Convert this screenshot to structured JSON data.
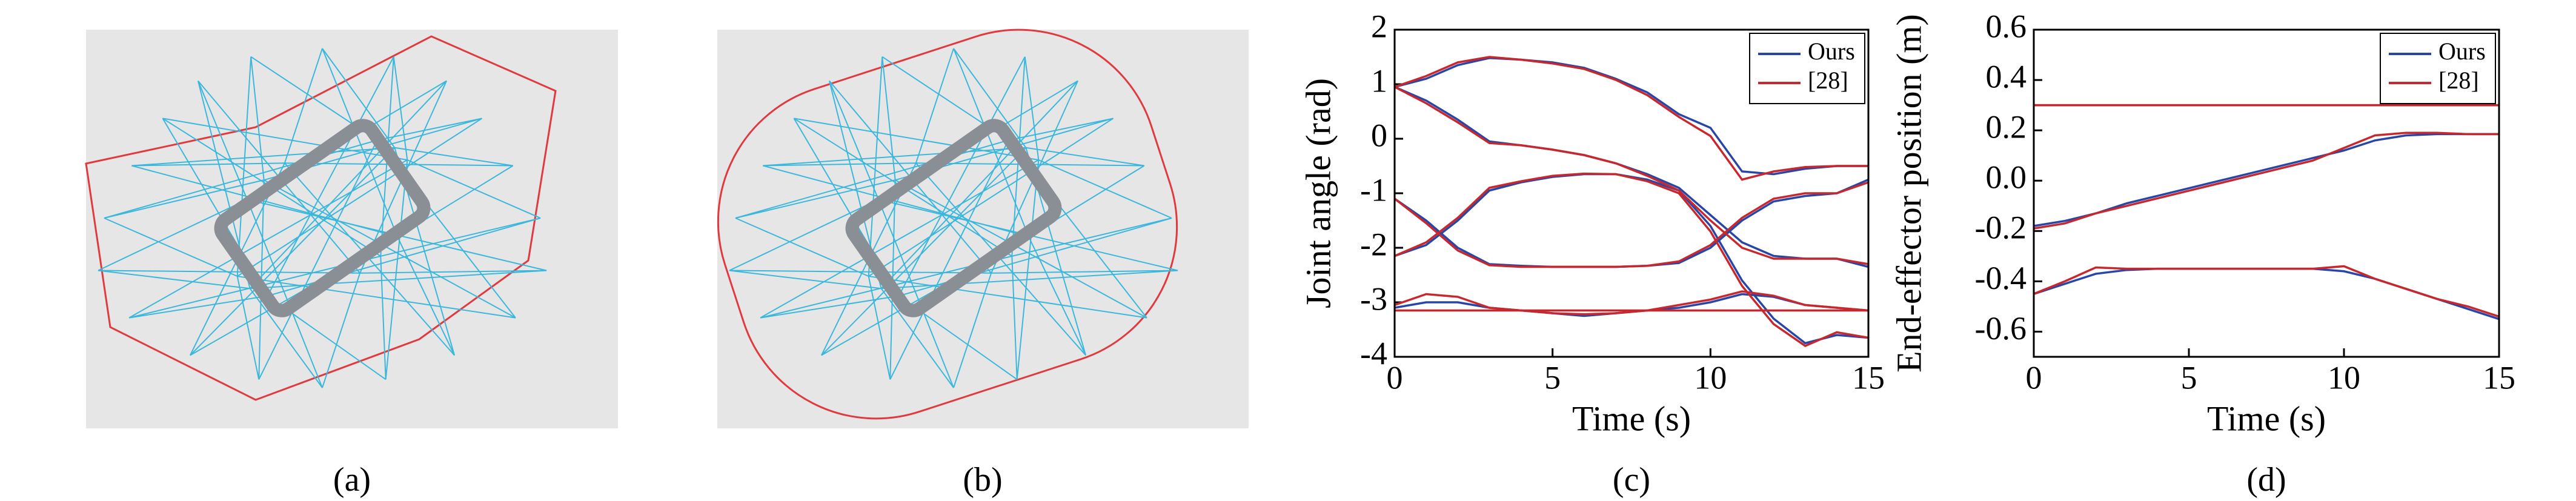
{
  "captions": [
    "(a)",
    "(b)",
    "(c)",
    "(d)"
  ],
  "chart_data": [
    {
      "type": "line",
      "xlabel": "Time (s)",
      "ylabel": "Joint angle (rad)",
      "x": [
        0,
        1,
        2,
        3,
        4,
        5,
        6,
        7,
        8,
        9,
        10,
        11,
        12,
        13,
        14,
        15
      ],
      "xlim": [
        0,
        15
      ],
      "xticks": [
        0,
        5,
        10,
        15
      ],
      "ylim": [
        -4,
        2
      ],
      "yticks": [
        -4,
        -3,
        -2,
        -1,
        0,
        1,
        2
      ],
      "legend": "upper right",
      "series": [
        {
          "name": "Ours",
          "color": "#2846a8",
          "values": [
            [
              0.95,
              1.1,
              1.35,
              1.48,
              1.45,
              1.4,
              1.3,
              1.1,
              0.85,
              0.45,
              0.2,
              -0.6,
              -0.65,
              -0.55,
              -0.5,
              -0.5
            ],
            [
              0.95,
              0.7,
              0.35,
              -0.05,
              -0.12,
              -0.2,
              -0.3,
              -0.45,
              -0.65,
              -0.9,
              -1.4,
              -1.9,
              -2.15,
              -2.2,
              -2.2,
              -2.35
            ],
            [
              -2.15,
              -1.95,
              -1.5,
              -0.95,
              -0.8,
              -0.7,
              -0.65,
              -0.65,
              -0.75,
              -0.95,
              -1.6,
              -2.6,
              -3.3,
              -3.75,
              -3.6,
              -3.65
            ],
            [
              -1.1,
              -1.5,
              -2.0,
              -2.3,
              -2.33,
              -2.35,
              -2.35,
              -2.35,
              -2.33,
              -2.28,
              -2.0,
              -1.5,
              -1.15,
              -1.05,
              -1.0,
              -0.75
            ],
            [
              -3.1,
              -3.0,
              -3.0,
              -3.1,
              -3.15,
              -3.2,
              -3.25,
              -3.2,
              -3.15,
              -3.1,
              -3.0,
              -2.85,
              -2.9,
              -3.05,
              -3.1,
              -3.15
            ]
          ]
        },
        {
          "name": "[28]",
          "color": "#c8282d",
          "values": [
            [
              0.95,
              1.15,
              1.4,
              1.5,
              1.45,
              1.38,
              1.28,
              1.08,
              0.8,
              0.4,
              0.05,
              -0.75,
              -0.6,
              -0.52,
              -0.5,
              -0.5
            ],
            [
              0.95,
              0.65,
              0.3,
              -0.08,
              -0.12,
              -0.2,
              -0.3,
              -0.45,
              -0.68,
              -0.95,
              -1.5,
              -2.0,
              -2.2,
              -2.2,
              -2.2,
              -2.3
            ],
            [
              -2.15,
              -1.9,
              -1.45,
              -0.9,
              -0.78,
              -0.68,
              -0.64,
              -0.65,
              -0.78,
              -1.0,
              -1.7,
              -2.7,
              -3.4,
              -3.8,
              -3.55,
              -3.65
            ],
            [
              -1.1,
              -1.55,
              -2.05,
              -2.32,
              -2.35,
              -2.35,
              -2.35,
              -2.35,
              -2.33,
              -2.25,
              -1.95,
              -1.45,
              -1.1,
              -1.0,
              -1.0,
              -0.8
            ],
            [
              -3.05,
              -2.85,
              -2.9,
              -3.1,
              -3.15,
              -3.2,
              -3.22,
              -3.2,
              -3.15,
              -3.05,
              -2.95,
              -2.8,
              -2.88,
              -3.05,
              -3.1,
              -3.15
            ],
            [
              -3.15,
              -3.15,
              -3.15,
              -3.15,
              -3.15,
              -3.15,
              -3.15,
              -3.15,
              -3.15,
              -3.15,
              -3.15,
              -3.15,
              -3.15,
              -3.15,
              -3.15,
              -3.15
            ]
          ]
        }
      ]
    },
    {
      "type": "line",
      "xlabel": "Time (s)",
      "ylabel": "End-effector position (m)",
      "x": [
        0,
        1,
        2,
        3,
        4,
        5,
        6,
        7,
        8,
        9,
        10,
        11,
        12,
        13,
        14,
        15
      ],
      "xlim": [
        0,
        15
      ],
      "xticks": [
        0,
        5,
        10,
        15
      ],
      "ylim": [
        -0.7,
        0.6
      ],
      "yticks": [
        -0.6,
        -0.4,
        -0.2,
        {
          "value": 0,
          "label": "0.0"
        },
        0.2,
        0.4,
        0.6
      ],
      "legend": "upper right",
      "series": [
        {
          "name": "Ours",
          "color": "#2846a8",
          "values": [
            [
              0.3,
              0.3,
              0.3,
              0.3,
              0.3,
              0.3,
              0.3,
              0.3,
              0.3,
              0.3,
              0.3,
              0.3,
              0.3,
              0.3,
              0.3,
              0.3
            ],
            [
              -0.18,
              -0.16,
              -0.13,
              -0.09,
              -0.06,
              -0.03,
              0.0,
              0.03,
              0.06,
              0.09,
              0.12,
              0.16,
              0.18,
              0.185,
              0.185,
              0.185
            ],
            [
              -0.45,
              -0.41,
              -0.37,
              -0.355,
              -0.35,
              -0.35,
              -0.35,
              -0.35,
              -0.35,
              -0.35,
              -0.36,
              -0.39,
              -0.43,
              -0.47,
              -0.51,
              -0.55
            ]
          ]
        },
        {
          "name": "[28]",
          "color": "#c8282d",
          "values": [
            [
              0.3,
              0.3,
              0.3,
              0.3,
              0.3,
              0.3,
              0.3,
              0.3,
              0.3,
              0.3,
              0.3,
              0.3,
              0.3,
              0.3,
              0.3,
              0.3
            ],
            [
              -0.19,
              -0.17,
              -0.13,
              -0.1,
              -0.07,
              -0.04,
              -0.01,
              0.02,
              0.05,
              0.08,
              0.13,
              0.18,
              0.19,
              0.19,
              0.185,
              0.185
            ],
            [
              -0.45,
              -0.4,
              -0.345,
              -0.35,
              -0.35,
              -0.35,
              -0.35,
              -0.35,
              -0.35,
              -0.35,
              -0.34,
              -0.39,
              -0.43,
              -0.47,
              -0.5,
              -0.54
            ]
          ]
        }
      ]
    }
  ]
}
